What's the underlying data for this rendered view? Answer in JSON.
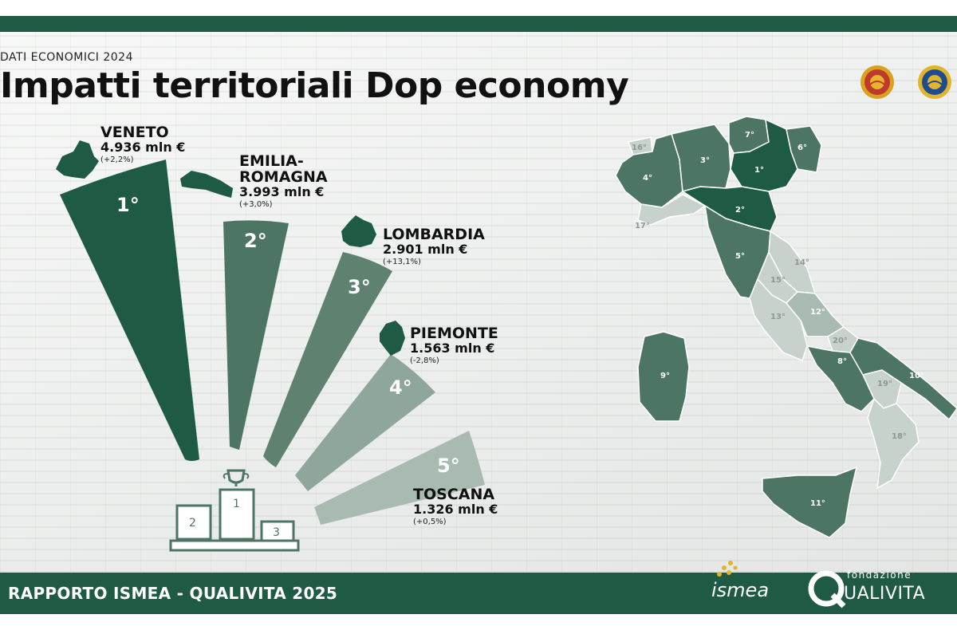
{
  "header": {
    "subtitle": "DATI ECONOMICI 2024",
    "title": "Impatti territoriali Dop economy"
  },
  "ranking": [
    {
      "rank": "1°",
      "name": "VENETO",
      "value": "4.936 mln €",
      "variation": "(+2,2%)"
    },
    {
      "rank": "2°",
      "name_line1": "EMILIA-",
      "name_line2": "ROMAGNA",
      "value": "3.993 mln €",
      "variation": "(+3,0%)"
    },
    {
      "rank": "3°",
      "name": "LOMBARDIA",
      "value": "2.901 mln €",
      "variation": "(+13,1%)"
    },
    {
      "rank": "4°",
      "name": "PIEMONTE",
      "value": "1.563 mln €",
      "variation": "(-2,8%)"
    },
    {
      "rank": "5°",
      "name": "TOSCANA",
      "value": "1.326 mln €",
      "variation": "(+0,5%)"
    }
  ],
  "podium": {
    "first": "1",
    "second": "2",
    "third": "3"
  },
  "map_ranks": [
    "1°",
    "2°",
    "3°",
    "4°",
    "5°",
    "6°",
    "7°",
    "8°",
    "9°",
    "10°",
    "11°",
    "12°",
    "13°",
    "14°",
    "15°",
    "16°",
    "17°",
    "18°",
    "19°",
    "20°"
  ],
  "footer": {
    "text": "RAPPORTO ISMEA - QUALIVITA 2025",
    "ismea_logo": "ismea",
    "qualivita_small": "fondazione",
    "qualivita": "UALIVITA"
  },
  "colors": {
    "dark_green": "#1f5a45",
    "green_2": "#4d7563",
    "green_3": "#5f8170",
    "green_4": "#8fa79a",
    "green_5": "#a9bbb1",
    "light_region": "#c7d2cc"
  },
  "icons": [
    "trophy-icon",
    "dop-seal-icon",
    "igp-seal-icon",
    "ismea-logo",
    "qualivita-logo"
  ]
}
